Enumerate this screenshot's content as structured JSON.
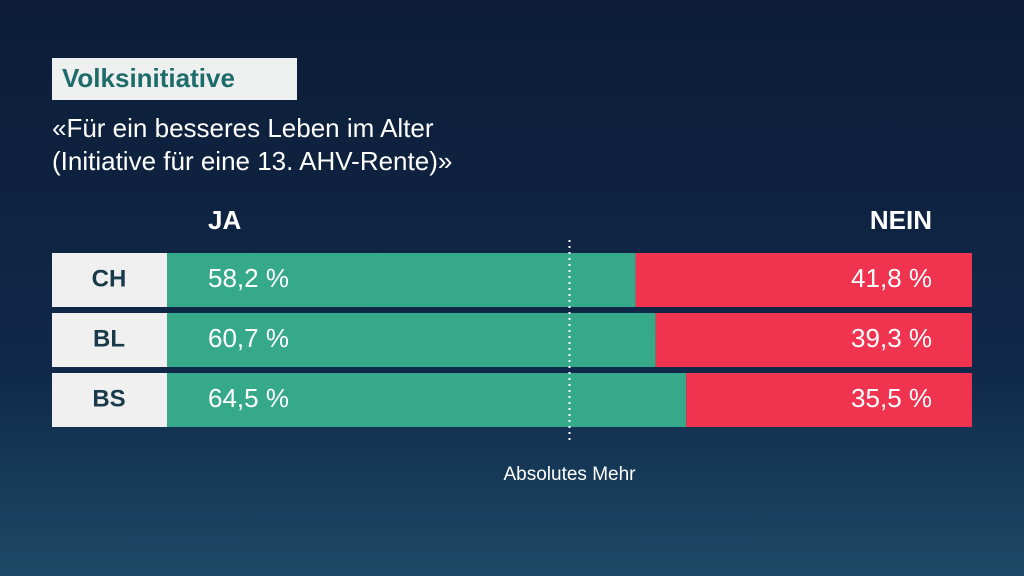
{
  "chart_data": {
    "type": "bar",
    "orientation": "horizontal",
    "stacked": true,
    "tag": "Volksinitiative",
    "title_lines": [
      "«Für ein besseres Leben im Alter",
      "(Initiative für eine 13. AHV-Rente)»"
    ],
    "categories": [
      "CH",
      "BL",
      "BS"
    ],
    "series": [
      {
        "name": "JA",
        "color": "#35a98a",
        "values": [
          58.2,
          60.7,
          64.5
        ],
        "value_labels": [
          "58,2 %",
          "60,7 %",
          "64,5 %"
        ]
      },
      {
        "name": "NEIN",
        "color": "#f0344f",
        "values": [
          41.8,
          39.3,
          35.5
        ],
        "value_labels": [
          "41,8 %",
          "39,3 %",
          "35,5 %"
        ]
      }
    ],
    "xlim": [
      0,
      100
    ],
    "reference_line": {
      "value": 50,
      "label": "Absolutes Mehr"
    }
  }
}
